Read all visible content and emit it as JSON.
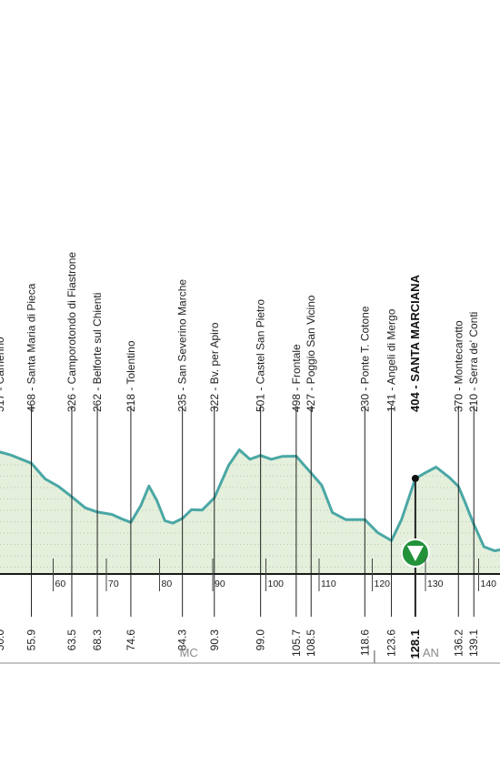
{
  "chart_data": {
    "type": "area",
    "title": "",
    "xlabel": "",
    "ylabel": "",
    "colors": {
      "profile_line": "#4aa7a5",
      "profile_fill": "#e4efdc",
      "dots": "#b9c9a4",
      "finish_marker": "#22923a",
      "axis": "#1a1a1a",
      "province_line": "#b0b0b0"
    },
    "x_ticks": [
      60,
      70,
      80,
      90,
      100,
      110,
      120,
      130,
      140
    ],
    "profile": [
      {
        "x": 44.0,
        "y": 510
      },
      {
        "x": 47.0,
        "y": 525
      },
      {
        "x": 49.5,
        "y": 519
      },
      {
        "x": 52.0,
        "y": 503
      },
      {
        "x": 55.9,
        "y": 468
      },
      {
        "x": 58.5,
        "y": 402
      },
      {
        "x": 61.0,
        "y": 370
      },
      {
        "x": 63.5,
        "y": 326
      },
      {
        "x": 66.0,
        "y": 280
      },
      {
        "x": 68.3,
        "y": 262
      },
      {
        "x": 71.0,
        "y": 252
      },
      {
        "x": 73.0,
        "y": 232
      },
      {
        "x": 74.6,
        "y": 218
      },
      {
        "x": 76.5,
        "y": 290
      },
      {
        "x": 78.0,
        "y": 372
      },
      {
        "x": 79.5,
        "y": 310
      },
      {
        "x": 81.0,
        "y": 225
      },
      {
        "x": 82.5,
        "y": 215
      },
      {
        "x": 84.3,
        "y": 235
      },
      {
        "x": 86.0,
        "y": 272
      },
      {
        "x": 88.0,
        "y": 270
      },
      {
        "x": 90.3,
        "y": 322
      },
      {
        "x": 93.0,
        "y": 460
      },
      {
        "x": 95.0,
        "y": 525
      },
      {
        "x": 97.0,
        "y": 485
      },
      {
        "x": 99.0,
        "y": 501
      },
      {
        "x": 101.0,
        "y": 485
      },
      {
        "x": 103.0,
        "y": 497
      },
      {
        "x": 105.7,
        "y": 498
      },
      {
        "x": 107.0,
        "y": 465
      },
      {
        "x": 108.5,
        "y": 427
      },
      {
        "x": 110.5,
        "y": 375
      },
      {
        "x": 112.5,
        "y": 260
      },
      {
        "x": 115.0,
        "y": 230
      },
      {
        "x": 116.5,
        "y": 230
      },
      {
        "x": 118.6,
        "y": 230
      },
      {
        "x": 121.0,
        "y": 175
      },
      {
        "x": 123.6,
        "y": 141
      },
      {
        "x": 125.5,
        "y": 230
      },
      {
        "x": 128.1,
        "y": 404
      },
      {
        "x": 130.0,
        "y": 428
      },
      {
        "x": 132.0,
        "y": 452
      },
      {
        "x": 134.5,
        "y": 408
      },
      {
        "x": 136.2,
        "y": 370
      },
      {
        "x": 137.5,
        "y": 300
      },
      {
        "x": 139.1,
        "y": 210
      },
      {
        "x": 141.0,
        "y": 115
      },
      {
        "x": 143.0,
        "y": 98
      },
      {
        "x": 144.5,
        "y": 104
      }
    ],
    "waypoints": [
      {
        "km": 55.9,
        "km_label": "55.9",
        "label": "468 - Santa Maria di Pieca",
        "line_top_elev": 468
      },
      {
        "km": 63.5,
        "km_label": "63.5",
        "label": "326 - Camporotondo di Fiastrone",
        "line_top_elev": 326
      },
      {
        "km": 68.3,
        "km_label": "68.3",
        "label": "262 - Belforte sul Chienti",
        "line_top_elev": 262
      },
      {
        "km": 74.6,
        "km_label": "74.6",
        "label": "218 - Tolentino",
        "line_top_elev": 218
      },
      {
        "km": 84.3,
        "km_label": "84.3",
        "label": "235 - San Severino Marche",
        "line_top_elev": 235
      },
      {
        "km": 90.3,
        "km_label": "90.3",
        "label": "322 - Bv. per Apiro",
        "line_top_elev": 322
      },
      {
        "km": 99.0,
        "km_label": "99.0",
        "label": "501 - Castel San Pietro",
        "line_top_elev": 501
      },
      {
        "km": 105.7,
        "km_label": "105.7",
        "label": "498 - Frontale",
        "line_top_elev": 498
      },
      {
        "km": 108.5,
        "km_label": "108.5",
        "label": "427 - Poggio San Vicino",
        "line_top_elev": 427
      },
      {
        "km": 118.6,
        "km_label": "118.6",
        "label": "230 - Ponte T. Cotone",
        "line_top_elev": 230
      },
      {
        "km": 123.6,
        "km_label": "123.6",
        "label": "141 - Angeli di Mergo",
        "line_top_elev": 141
      },
      {
        "km": 128.1,
        "km_label": "128.1",
        "label": "404 - SANTA MARCIANA",
        "bold": true,
        "finish": true,
        "line_top_elev": 404
      },
      {
        "km": 136.2,
        "km_label": "136.2",
        "label": "370 - Montecarotto",
        "line_top_elev": 370
      },
      {
        "km": 139.1,
        "km_label": "139.1",
        "label": "210 - Serra de' Conti",
        "line_top_elev": 210
      }
    ],
    "partial": {
      "label_fragment": "517 - Camerino",
      "km_fragment": "50.0"
    },
    "provinces": [
      {
        "name": "MC",
        "center_km": 85.5
      },
      {
        "name": "AN",
        "center_km": 131.0
      }
    ],
    "province_boundary_km": 120.4
  }
}
